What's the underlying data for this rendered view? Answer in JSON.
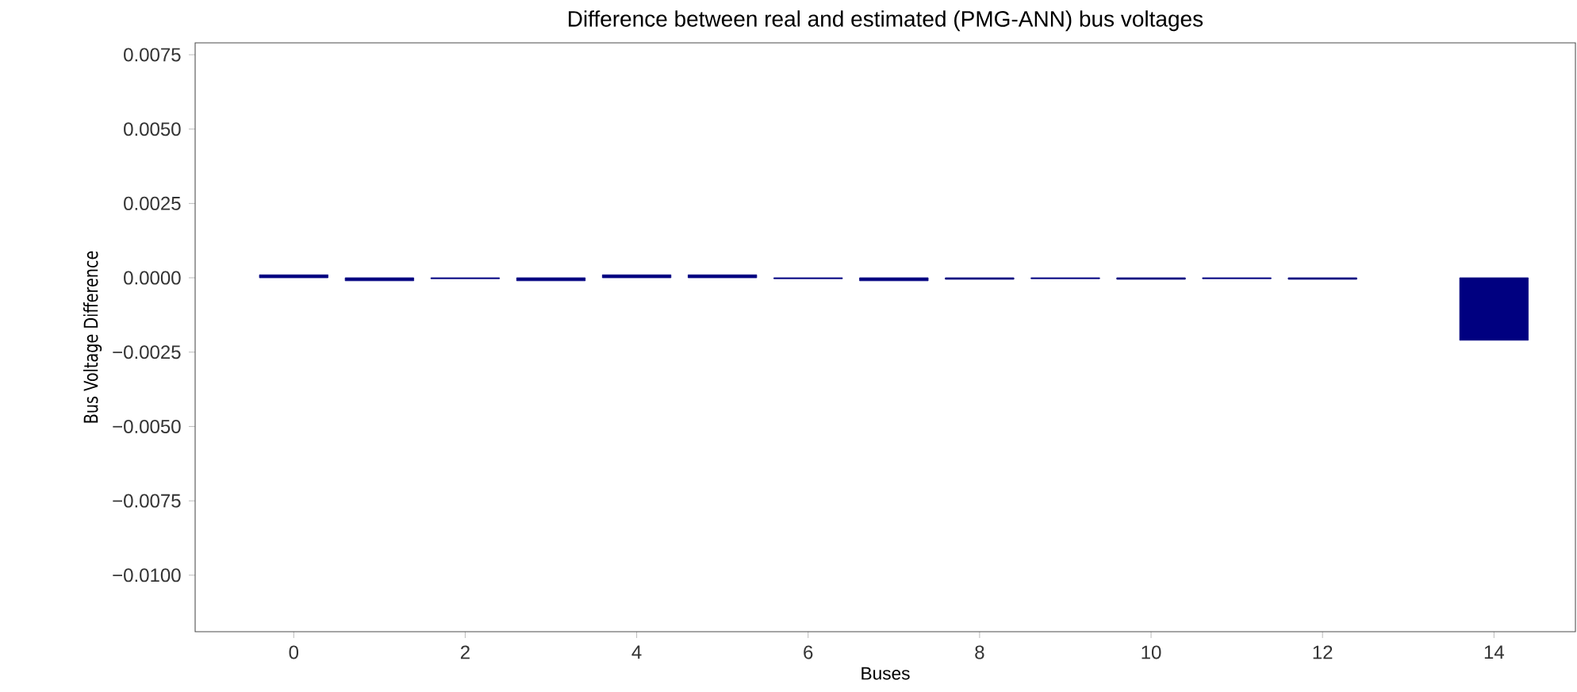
{
  "chart_data": {
    "type": "bar",
    "title": "Difference between real and estimated (PMG-ANN) bus voltages",
    "xlabel": "Buses",
    "ylabel": "Bus Voltage Difference",
    "x": [
      0,
      1,
      2,
      3,
      4,
      5,
      6,
      7,
      8,
      9,
      10,
      11,
      12,
      14
    ],
    "values": [
      0.0001,
      -0.0001,
      -3e-05,
      -0.0001,
      0.0001,
      0.0001,
      -3e-05,
      -0.0001,
      -5e-05,
      -3e-05,
      -5e-05,
      -3e-05,
      -5e-05,
      -0.0021
    ],
    "color": "#000080",
    "xlim": [
      -1.15,
      14.95
    ],
    "ylim": [
      -0.0119,
      0.0079
    ],
    "xticks": [
      0,
      2,
      4,
      6,
      8,
      10,
      12,
      14
    ],
    "yticks": [
      {
        "value": -0.01,
        "label": "−0.0100"
      },
      {
        "value": -0.0075,
        "label": "−0.0075"
      },
      {
        "value": -0.005,
        "label": "−0.0050"
      },
      {
        "value": -0.0025,
        "label": "−0.0025"
      },
      {
        "value": 0.0,
        "label": "0.0000"
      },
      {
        "value": 0.0025,
        "label": "0.0025"
      },
      {
        "value": 0.005,
        "label": "0.0050"
      },
      {
        "value": 0.0075,
        "label": "0.0075"
      }
    ],
    "grid": false
  }
}
